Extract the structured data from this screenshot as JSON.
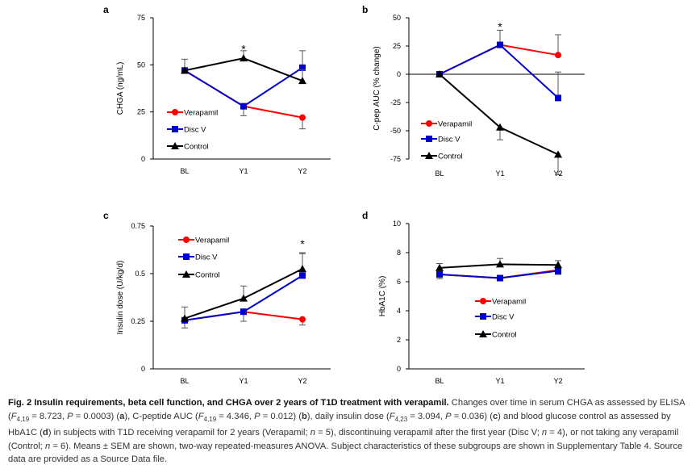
{
  "chart_data": [
    {
      "type": "line",
      "panel": "a",
      "ylabel": "CHGA (ng/mL)",
      "xlabel": "",
      "categories": [
        "BL",
        "Y1",
        "Y2"
      ],
      "ylim": [
        0,
        75
      ],
      "yticks": [
        "0",
        "25",
        "50",
        "75"
      ],
      "star": {
        "text": "*",
        "category": "Y1",
        "value": 59
      },
      "series": [
        {
          "name": "Verapamil",
          "color": "#ff0000",
          "marker": "circle",
          "values": [
            47,
            28,
            22
          ],
          "err": [
            0,
            5,
            6
          ]
        },
        {
          "name": "Disc V",
          "color": "#0000cc",
          "marker": "square",
          "values": [
            47,
            28,
            48.5
          ],
          "err": [
            0,
            0,
            9
          ]
        },
        {
          "name": "Control",
          "color": "#000000",
          "marker": "triangle",
          "values": [
            47,
            53.5,
            41.5
          ],
          "err": [
            6,
            4,
            6
          ]
        }
      ],
      "legend": "lower-left"
    },
    {
      "type": "line",
      "panel": "b",
      "ylabel": "C-pep AUC (% change)",
      "xlabel": "",
      "categories": [
        "BL",
        "Y1",
        "Y2"
      ],
      "ylim": [
        -75,
        50
      ],
      "yticks": [
        "-75",
        "-50",
        "-25",
        "0",
        "25",
        "50"
      ],
      "star": {
        "text": "*",
        "category": "Y1",
        "value": 43
      },
      "series": [
        {
          "name": "Verapamil",
          "color": "#ff0000",
          "marker": "circle",
          "values": [
            0,
            26,
            17
          ],
          "err": [
            0,
            13,
            18
          ]
        },
        {
          "name": "Disc V",
          "color": "#0000cc",
          "marker": "square",
          "values": [
            0,
            26,
            -21
          ],
          "err": [
            0,
            0,
            23
          ]
        },
        {
          "name": "Control",
          "color": "#000000",
          "marker": "triangle",
          "values": [
            0,
            -47,
            -71
          ],
          "err": [
            0,
            11,
            18
          ]
        }
      ],
      "legend": "lower-left"
    },
    {
      "type": "line",
      "panel": "c",
      "ylabel": "Insulin dose (U/kg/d)",
      "xlabel": "",
      "categories": [
        "BL",
        "Y1",
        "Y2"
      ],
      "ylim": [
        0,
        0.75
      ],
      "yticks": [
        "0",
        "0.25",
        "0.5",
        "0.75"
      ],
      "star": {
        "text": "*",
        "category": "Y2",
        "value": 0.66
      },
      "series": [
        {
          "name": "Verapamil",
          "color": "#ff0000",
          "marker": "circle",
          "values": [
            0.255,
            0.3,
            0.26
          ],
          "err": [
            0.04,
            0.05,
            0.03
          ]
        },
        {
          "name": "Disc V",
          "color": "#0000cc",
          "marker": "square",
          "values": [
            0.255,
            0.3,
            0.49
          ],
          "err": [
            0,
            0,
            0.12
          ]
        },
        {
          "name": "Control",
          "color": "#000000",
          "marker": "triangle",
          "values": [
            0.265,
            0.37,
            0.525
          ],
          "err": [
            0.06,
            0.065,
            0.08
          ]
        }
      ],
      "legend": "upper-left"
    },
    {
      "type": "line",
      "panel": "d",
      "ylabel": "HbA1C (%)",
      "xlabel": "",
      "categories": [
        "BL",
        "Y1",
        "Y2"
      ],
      "ylim": [
        0,
        10
      ],
      "yticks": [
        "0",
        "2",
        "4",
        "6",
        "8",
        "10"
      ],
      "series": [
        {
          "name": "Verapamil",
          "color": "#ff0000",
          "marker": "circle",
          "values": [
            6.5,
            6.25,
            6.8
          ],
          "err": [
            0.3,
            0.2,
            0.3
          ]
        },
        {
          "name": "Disc V",
          "color": "#0000cc",
          "marker": "square",
          "values": [
            6.5,
            6.25,
            6.75
          ],
          "err": [
            0,
            0,
            0.25
          ]
        },
        {
          "name": "Control",
          "color": "#000000",
          "marker": "triangle",
          "values": [
            6.95,
            7.2,
            7.15
          ],
          "err": [
            0.3,
            0.4,
            0.3
          ]
        }
      ],
      "legend": "lower-center"
    }
  ],
  "caption": {
    "title": "Fig. 2 Insulin requirements, beta cell function, and CHGA over 2 years of T1D treatment with verapamil.",
    "body": "Changes over time in serum CHGA as assessed by ELISA (F4,19 = 8.723, P = 0.0003) (a), C-peptide AUC (F4,19 = 4.346, P = 0.012) (b), daily insulin dose (F4,23 = 3.094, P = 0.036) (c) and blood glucose control as assessed by HbA1C (d) in subjects with T1D receiving verapamil for 2 years (Verapamil; n = 5), discontinuing verapamil after the first year (Disc V; n = 4), or not taking any verapamil (Control; n = 6). Means ± SEM are shown, two-way repeated-measures ANOVA. Subject characteristics of these subgroups are shown in Supplementary Table 4. Source data are provided as a Source Data file."
  }
}
